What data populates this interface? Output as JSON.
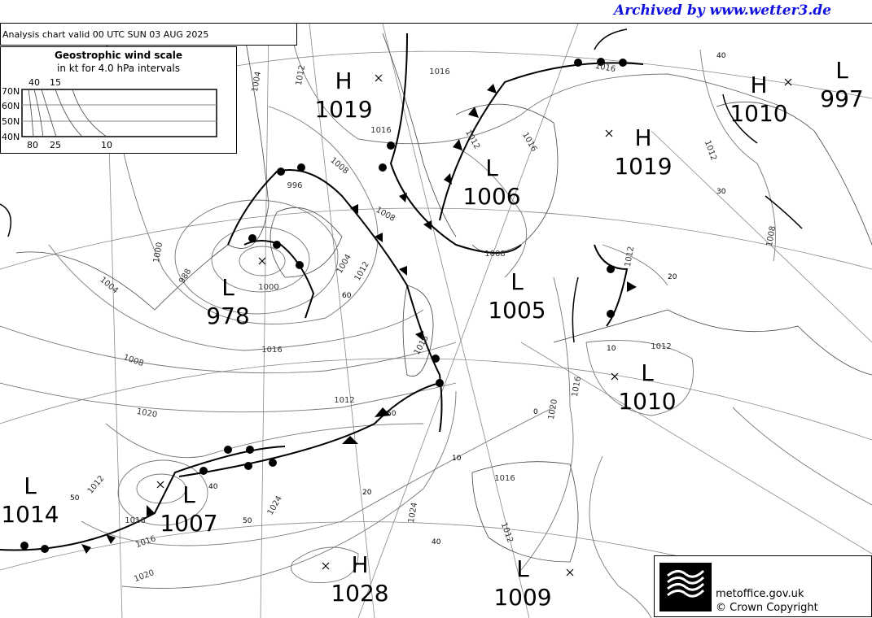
{
  "archive_banner": "Archived by www.wetter3.de",
  "chart_title": "Analysis chart  valid 00 UTC SUN 03  AUG 2025",
  "wind_scale": {
    "title": "Geostrophic wind scale",
    "subtitle": "in kt for 4.0 hPa intervals",
    "lat_labels": [
      "70N",
      "60N",
      "50N",
      "40N"
    ],
    "top_labels": [
      "40",
      "15"
    ],
    "bottom_labels": [
      "80",
      "25",
      "10"
    ]
  },
  "pressure_centres": [
    {
      "type": "H",
      "value": "1019"
    },
    {
      "type": "L",
      "value": "978"
    },
    {
      "type": "L",
      "value": "1006"
    },
    {
      "type": "L",
      "value": "1005"
    },
    {
      "type": "H",
      "value": "1019"
    },
    {
      "type": "H",
      "value": "1010"
    },
    {
      "type": "L",
      "value": "997"
    },
    {
      "type": "L",
      "value": "1010"
    },
    {
      "type": "L",
      "value": "1014"
    },
    {
      "type": "L",
      "value": "1007"
    },
    {
      "type": "H",
      "value": "1028"
    },
    {
      "type": "L",
      "value": "1009"
    }
  ],
  "isobar_labels": [
    "1004",
    "1012",
    "1016",
    "1008",
    "996",
    "1000",
    "1004",
    "988",
    "1000",
    "1004",
    "1012",
    "1008",
    "1016",
    "1020",
    "1012",
    "1016",
    "1016",
    "1012",
    "1008",
    "1016",
    "1020",
    "1016",
    "1012",
    "1024",
    "1020",
    "1016",
    "1012",
    "1024",
    "1012",
    "1012",
    "1012",
    "1016",
    "1008",
    "1008",
    "1016",
    "1016"
  ],
  "grid_labels": [
    "60",
    "50",
    "40",
    "20",
    "10",
    "0",
    "10",
    "20",
    "40",
    "30",
    "50",
    "50",
    "40"
  ],
  "footer": {
    "logo_text": "Met Office",
    "site": "metoffice.gov.uk",
    "copyright": "© Crown Copyright"
  },
  "colors": {
    "banner": "#1010e0",
    "isobar": "#666666",
    "front": "#000000"
  }
}
